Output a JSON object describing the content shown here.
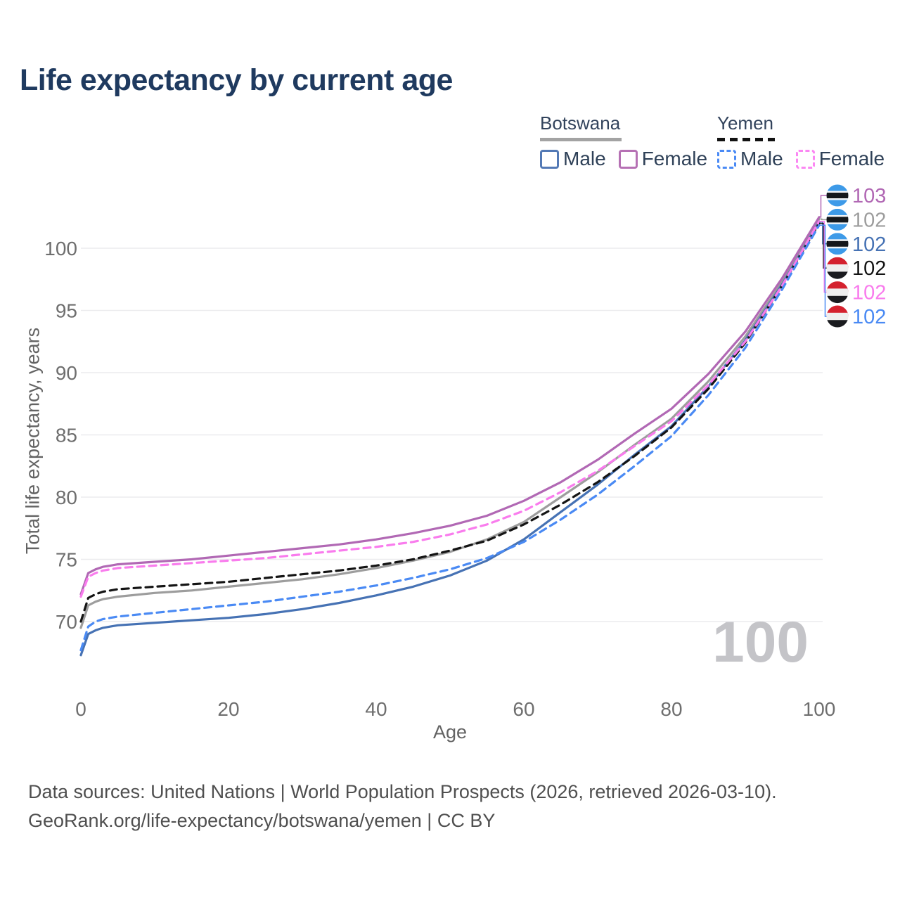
{
  "title": "Life expectancy by current age",
  "legend": {
    "botswana": {
      "label": "Botswana",
      "male": "Male",
      "female": "Female"
    },
    "yemen": {
      "label": "Yemen",
      "male": "Male",
      "female": "Female"
    }
  },
  "footer": {
    "line1": "Data sources: United Nations | World Population Prospects (2026, retrieved 2026-03-10).",
    "line2": "GeoRank.org/life-expectancy/botswana/yemen | CC BY"
  },
  "colors": {
    "title_text": "#1f3a5f",
    "legend_text": "#2e4057",
    "tick_text": "#6e6e6e",
    "axis_title_text": "#636363",
    "gridline": "#ebebee",
    "watermark": "#c4c4c8",
    "footer_text": "#4f4f4f"
  },
  "chart_data": {
    "type": "line",
    "title": "Life expectancy by current age",
    "xlabel": "Age",
    "ylabel": "Total life expectancy, years",
    "x_ticks": [
      0,
      20,
      40,
      60,
      80,
      100
    ],
    "y_ticks": [
      70,
      75,
      80,
      85,
      90,
      95,
      100
    ],
    "xlim": [
      0,
      100
    ],
    "ylim": [
      66.5,
      104
    ],
    "grid": true,
    "legend_position": "top-right",
    "current_age_marker": "100",
    "ages": [
      0,
      1,
      2,
      3,
      4,
      5,
      10,
      15,
      20,
      25,
      30,
      35,
      40,
      45,
      50,
      55,
      60,
      65,
      70,
      75,
      80,
      85,
      90,
      95,
      100
    ],
    "series": [
      {
        "name": "Botswana Female",
        "country": "Botswana",
        "sex": "Female",
        "line": "solid",
        "color": "#b168b4",
        "end_label": "103",
        "flag": "botswana",
        "values": [
          72.2,
          73.9,
          74.2,
          74.4,
          74.5,
          74.6,
          74.8,
          75.0,
          75.3,
          75.6,
          75.9,
          76.2,
          76.6,
          77.1,
          77.7,
          78.5,
          79.7,
          81.2,
          83.0,
          85.1,
          87.1,
          89.9,
          93.3,
          97.6,
          102.5
        ]
      },
      {
        "name": "Botswana Total",
        "country": "Botswana",
        "sex": "Total",
        "line": "solid",
        "color": "#9d9d9d",
        "end_label": "102",
        "flag": "botswana",
        "values": [
          69.5,
          71.3,
          71.6,
          71.8,
          71.9,
          72.0,
          72.3,
          72.5,
          72.8,
          73.1,
          73.4,
          73.8,
          74.3,
          74.9,
          75.6,
          76.6,
          78.0,
          80.0,
          82.0,
          84.2,
          86.3,
          89.3,
          92.9,
          97.3,
          102.35
        ]
      },
      {
        "name": "Botswana Male",
        "country": "Botswana",
        "sex": "Male",
        "line": "solid",
        "color": "#4672b4",
        "end_label": "102",
        "flag": "botswana",
        "values": [
          67.3,
          69.0,
          69.3,
          69.5,
          69.6,
          69.7,
          69.9,
          70.1,
          70.3,
          70.6,
          71.0,
          71.5,
          72.1,
          72.8,
          73.7,
          74.9,
          76.6,
          78.8,
          81.0,
          83.4,
          85.7,
          88.9,
          92.6,
          97.1,
          102.1
        ]
      },
      {
        "name": "Yemen Total",
        "country": "Yemen",
        "sex": "Total",
        "line": "dashed",
        "color": "#141414",
        "end_label": "102",
        "flag": "yemen",
        "values": [
          70.0,
          71.9,
          72.2,
          72.4,
          72.5,
          72.6,
          72.8,
          73.0,
          73.2,
          73.5,
          73.8,
          74.1,
          74.5,
          75.0,
          75.7,
          76.5,
          77.8,
          79.4,
          81.2,
          83.3,
          85.6,
          88.7,
          92.4,
          97.0,
          102.0
        ]
      },
      {
        "name": "Yemen Female",
        "country": "Yemen",
        "sex": "Female",
        "line": "dashed",
        "color": "#f97ced",
        "end_label": "102",
        "flag": "yemen",
        "values": [
          72.0,
          73.6,
          73.9,
          74.1,
          74.2,
          74.3,
          74.5,
          74.7,
          74.9,
          75.1,
          75.4,
          75.7,
          76.0,
          76.4,
          77.0,
          77.8,
          78.9,
          80.4,
          82.1,
          84.1,
          86.1,
          89.0,
          92.5,
          97.0,
          102.15
        ]
      },
      {
        "name": "Yemen Male",
        "country": "Yemen",
        "sex": "Male",
        "line": "dashed",
        "color": "#4a8af4",
        "end_label": "102",
        "flag": "yemen",
        "values": [
          67.7,
          69.6,
          70.0,
          70.2,
          70.3,
          70.4,
          70.7,
          71.0,
          71.3,
          71.6,
          72.0,
          72.4,
          72.9,
          73.5,
          74.2,
          75.1,
          76.4,
          78.2,
          80.2,
          82.5,
          84.9,
          88.2,
          92.0,
          96.7,
          101.85
        ]
      }
    ],
    "flag_colors": {
      "botswana": {
        "field": "#3d9ae8",
        "band": "#15181c",
        "fimbriation": "#f4f6f8"
      },
      "yemen": {
        "top": "#d4212e",
        "middle": "#efefef",
        "bottom": "#1a1b1f"
      }
    }
  }
}
